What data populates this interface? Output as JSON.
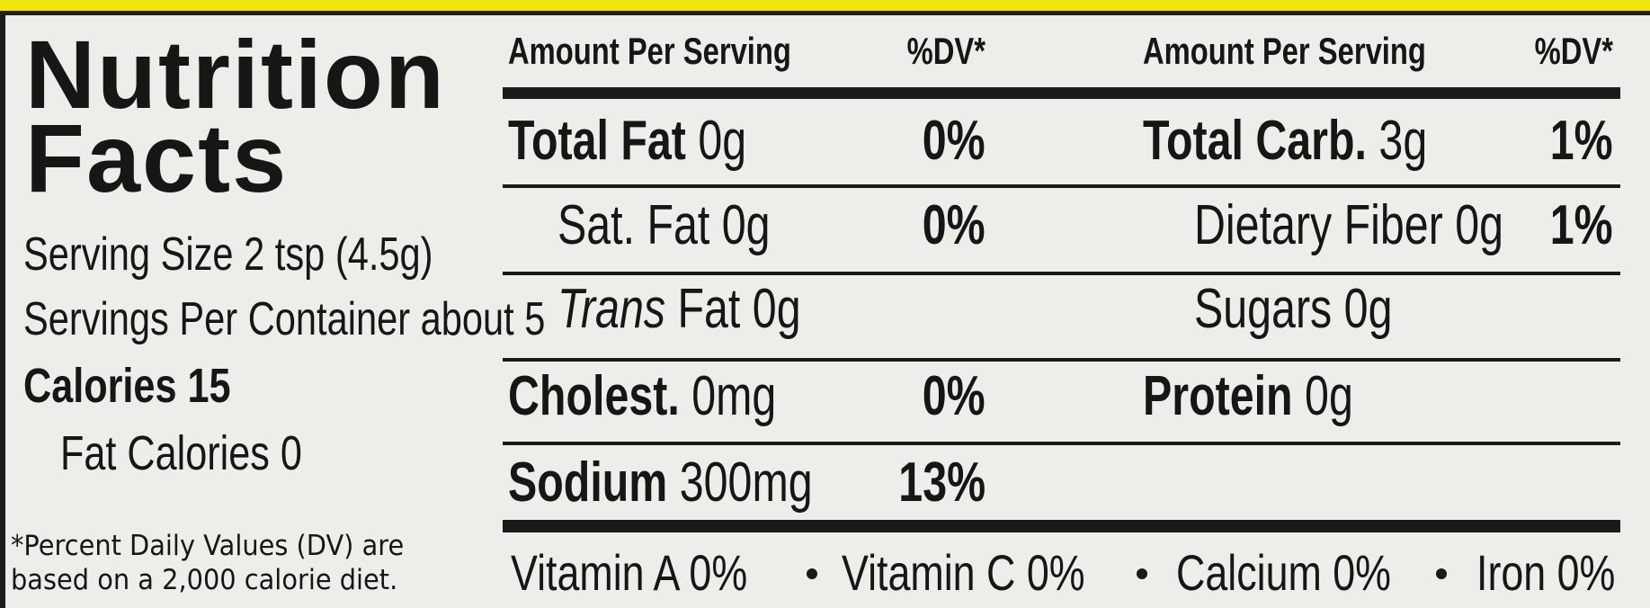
{
  "header": {
    "title_line1": "Nutrition",
    "title_line2": "Facts"
  },
  "serving": {
    "size": "Serving Size 2 tsp (4.5g)",
    "per_container": "Servings Per Container about 5",
    "calories": "Calories 15",
    "fat_calories": "Fat Calories 0"
  },
  "footnote": [
    "*Percent Daily Values (DV) are",
    "based on a 2,000 calorie diet."
  ],
  "table": {
    "columns": [
      {
        "amount_header": "Amount Per Serving",
        "dv_header": "%DV*"
      },
      {
        "amount_header": "Amount Per Serving",
        "dv_header": "%DV*"
      }
    ],
    "left_rows": [
      {
        "label": "Total Fat",
        "amount": "0g",
        "dv": "0%",
        "bold": true,
        "indent": false
      },
      {
        "label": "Sat. Fat",
        "amount": "0g",
        "dv": "0%",
        "bold": false,
        "indent": true
      },
      {
        "label_italic": "Trans",
        "label": "Fat",
        "amount": "0g",
        "bold": false,
        "indent": true
      },
      {
        "label": "Cholest.",
        "amount": "0mg",
        "dv": "0%",
        "bold": true,
        "indent": false
      },
      {
        "label": "Sodium",
        "amount": "300mg",
        "dv": "13%",
        "bold": true,
        "indent": false
      }
    ],
    "right_rows": [
      {
        "label": "Total Carb.",
        "amount": "3g",
        "dv": "1%",
        "bold": true,
        "indent": false
      },
      {
        "label": "Dietary Fiber",
        "amount": "0g",
        "dv": "1%",
        "bold": false,
        "indent": true
      },
      {
        "label": "Sugars",
        "amount": "0g",
        "bold": false,
        "indent": true
      },
      {
        "label": "Protein",
        "amount": "0g",
        "bold": true,
        "indent": false
      }
    ],
    "vitamins": [
      "Vitamin A 0%",
      "Vitamin C 0%",
      "Calcium 0%",
      "Iron 0%"
    ]
  }
}
